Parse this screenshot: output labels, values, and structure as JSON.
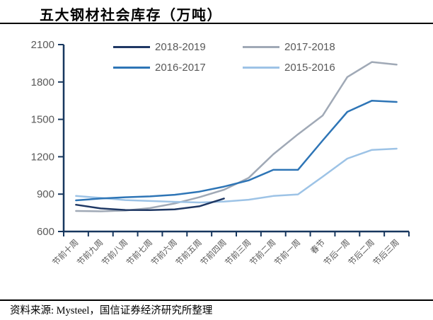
{
  "title": "五大钢材社会库存（万吨）",
  "footer": {
    "source_text": "资料来源: Mysteel，国信证券经济研究所整理"
  },
  "colors": {
    "axis": "#17375E",
    "tick_label": "#595959",
    "legend_label": "#595959",
    "title_text": "#000000",
    "divider": "#000000"
  },
  "chart_data": {
    "type": "line",
    "title": "五大钢材社会库存（万吨）",
    "xlabel": "",
    "ylabel": "",
    "ylim": [
      600,
      2100
    ],
    "ytick_step": 300,
    "ytick_labels": [
      "600",
      "900",
      "1200",
      "1500",
      "1800",
      "2100"
    ],
    "grid": false,
    "legend_position": "top",
    "categories": [
      "节前十周",
      "节前九周",
      "节前八周",
      "节前七周",
      "节前六周",
      "节前五周",
      "节前四周",
      "节前三周",
      "节前二周",
      "节前一周",
      "春节",
      "节后一周",
      "节后二周",
      "节后三周"
    ],
    "series": [
      {
        "name": "2018-2019",
        "color": "#1F3864",
        "values": [
          815,
          785,
          773,
          772,
          778,
          802,
          865,
          null,
          null,
          null,
          null,
          null,
          null,
          null
        ]
      },
      {
        "name": "2017-2018",
        "color": "#A0A9B6",
        "values": [
          765,
          762,
          768,
          788,
          825,
          875,
          935,
          1030,
          1220,
          1380,
          1530,
          1840,
          1960,
          1940
        ]
      },
      {
        "name": "2016-2017",
        "color": "#2E75B6",
        "values": [
          850,
          865,
          875,
          882,
          895,
          920,
          960,
          1010,
          1095,
          1095,
          1330,
          1560,
          1650,
          1640
        ]
      },
      {
        "name": "2015-2016",
        "color": "#9DC3E6",
        "values": [
          885,
          870,
          852,
          845,
          838,
          833,
          840,
          855,
          885,
          898,
          1040,
          1185,
          1255,
          1265
        ]
      }
    ]
  }
}
